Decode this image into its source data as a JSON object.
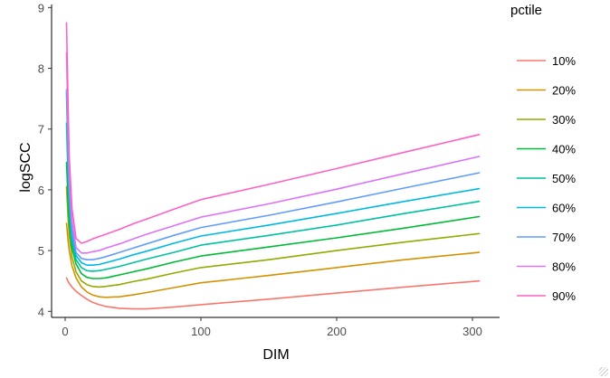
{
  "chart_data": {
    "type": "line",
    "title": "",
    "xlabel": "DIM",
    "ylabel": "logSCC",
    "xlim": [
      -10,
      320
    ],
    "ylim": [
      3.9,
      9.05
    ],
    "xticks": [
      0,
      100,
      200,
      300
    ],
    "yticks": [
      4,
      5,
      6,
      7,
      8,
      9
    ],
    "grid": false,
    "legend": {
      "title": "pctile",
      "position": "right"
    },
    "x": [
      1,
      2,
      3,
      5,
      8,
      12,
      16,
      20,
      25,
      30,
      40,
      50,
      60,
      80,
      100,
      150,
      200,
      250,
      305
    ],
    "series": [
      {
        "name": "10%",
        "color": "#F8766D",
        "values": [
          4.55,
          4.5,
          4.46,
          4.4,
          4.33,
          4.26,
          4.2,
          4.15,
          4.11,
          4.08,
          4.05,
          4.04,
          4.04,
          4.07,
          4.11,
          4.2,
          4.3,
          4.4,
          4.5
        ]
      },
      {
        "name": "20%",
        "color": "#D39200",
        "values": [
          5.45,
          5.2,
          5.0,
          4.75,
          4.55,
          4.4,
          4.32,
          4.27,
          4.24,
          4.23,
          4.24,
          4.27,
          4.31,
          4.39,
          4.47,
          4.59,
          4.72,
          4.85,
          4.97
        ]
      },
      {
        "name": "30%",
        "color": "#93AA00",
        "values": [
          6.05,
          5.6,
          5.25,
          4.9,
          4.65,
          4.5,
          4.44,
          4.41,
          4.4,
          4.41,
          4.44,
          4.49,
          4.53,
          4.63,
          4.72,
          4.85,
          5.0,
          5.14,
          5.28
        ]
      },
      {
        "name": "40%",
        "color": "#00BA38",
        "values": [
          6.45,
          5.9,
          5.45,
          5.05,
          4.78,
          4.62,
          4.56,
          4.54,
          4.54,
          4.55,
          4.6,
          4.65,
          4.7,
          4.81,
          4.91,
          5.06,
          5.21,
          5.37,
          5.56
        ]
      },
      {
        "name": "50%",
        "color": "#00C19F",
        "values": [
          7.1,
          6.3,
          5.65,
          5.15,
          4.85,
          4.72,
          4.67,
          4.66,
          4.67,
          4.69,
          4.74,
          4.8,
          4.86,
          4.97,
          5.09,
          5.25,
          5.42,
          5.61,
          5.81
        ]
      },
      {
        "name": "60%",
        "color": "#00B9E3",
        "values": [
          7.6,
          6.6,
          5.85,
          5.25,
          4.92,
          4.8,
          4.76,
          4.76,
          4.77,
          4.8,
          4.86,
          4.93,
          4.99,
          5.12,
          5.24,
          5.42,
          5.61,
          5.81,
          6.02
        ]
      },
      {
        "name": "70%",
        "color": "#619CFF",
        "values": [
          7.65,
          6.8,
          6.0,
          5.35,
          4.97,
          4.87,
          4.85,
          4.85,
          4.87,
          4.9,
          4.97,
          5.04,
          5.11,
          5.25,
          5.38,
          5.58,
          5.8,
          6.03,
          6.28
        ]
      },
      {
        "name": "80%",
        "color": "#DB72FB",
        "values": [
          8.25,
          7.2,
          6.25,
          5.5,
          5.05,
          4.96,
          4.96,
          4.98,
          5.0,
          5.04,
          5.11,
          5.19,
          5.27,
          5.41,
          5.55,
          5.77,
          6.01,
          6.27,
          6.55
        ]
      },
      {
        "name": "90%",
        "color": "#FF61C3",
        "values": [
          8.75,
          7.6,
          6.55,
          5.7,
          5.2,
          5.12,
          5.15,
          5.19,
          5.23,
          5.27,
          5.35,
          5.44,
          5.52,
          5.68,
          5.84,
          6.09,
          6.35,
          6.62,
          6.91
        ]
      }
    ]
  }
}
